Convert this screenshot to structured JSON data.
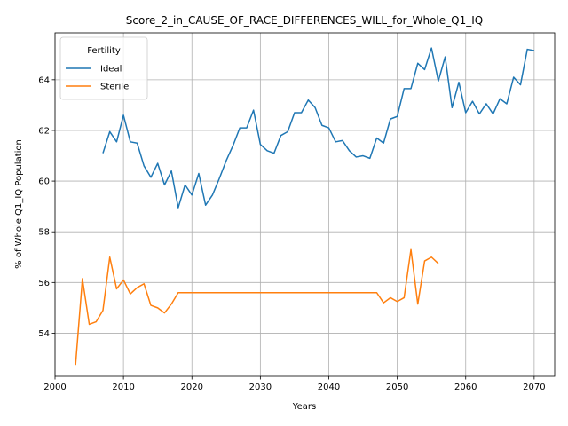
{
  "chart_data": {
    "type": "line",
    "title": "Score_2_in_CAUSE_OF_RACE_DIFFERENCES_WILL_for_Whole_Q1_IQ",
    "xlabel": "Years",
    "ylabel": "% of Whole Q1_IQ Population",
    "xlim": [
      2000,
      2073
    ],
    "ylim": [
      52.3,
      65.85
    ],
    "xticks": [
      2000,
      2010,
      2020,
      2030,
      2040,
      2050,
      2060,
      2070
    ],
    "yticks": [
      54,
      56,
      58,
      60,
      62,
      64
    ],
    "grid": true,
    "legend": {
      "title": "Fertility",
      "placement": "top-left"
    },
    "series": [
      {
        "name": "Ideal",
        "color": "#1f77b4",
        "x": [
          2007,
          2008,
          2009,
          2010,
          2011,
          2012,
          2013,
          2014,
          2015,
          2016,
          2017,
          2018,
          2019,
          2020,
          2021,
          2022,
          2023,
          2024,
          2025,
          2026,
          2027,
          2028,
          2029,
          2030,
          2031,
          2032,
          2033,
          2034,
          2035,
          2036,
          2037,
          2038,
          2039,
          2040,
          2041,
          2042,
          2043,
          2044,
          2045,
          2046,
          2047,
          2048,
          2049,
          2050,
          2051,
          2052,
          2053,
          2054,
          2055,
          2056,
          2057,
          2058,
          2059,
          2060,
          2061,
          2062,
          2063,
          2064,
          2065,
          2066,
          2067,
          2068,
          2069,
          2070
        ],
        "values": [
          61.1,
          61.95,
          61.55,
          62.6,
          61.55,
          61.5,
          60.6,
          60.15,
          60.7,
          59.85,
          60.4,
          58.95,
          59.85,
          59.45,
          60.3,
          59.05,
          59.45,
          60.1,
          60.8,
          61.4,
          62.1,
          62.1,
          62.8,
          61.45,
          61.2,
          61.1,
          61.8,
          61.95,
          62.7,
          62.7,
          63.2,
          62.9,
          62.2,
          62.1,
          61.55,
          61.6,
          61.2,
          60.95,
          61.0,
          60.9,
          61.7,
          61.5,
          62.45,
          62.55,
          63.65,
          63.65,
          64.65,
          64.4,
          65.25,
          63.95,
          64.9,
          62.9,
          63.9,
          62.7,
          63.15,
          62.65,
          63.05,
          62.65,
          63.25,
          63.05,
          64.1,
          63.8,
          65.2,
          65.15
        ]
      },
      {
        "name": "Sterile",
        "color": "#ff7f0e",
        "x": [
          2003,
          2004,
          2005,
          2006,
          2007,
          2008,
          2009,
          2010,
          2011,
          2012,
          2013,
          2014,
          2015,
          2016,
          2017,
          2018,
          2019,
          2020,
          2021,
          2022,
          2023,
          2024,
          2025,
          2026,
          2027,
          2028,
          2029,
          2030,
          2031,
          2032,
          2033,
          2034,
          2035,
          2036,
          2037,
          2038,
          2039,
          2040,
          2041,
          2042,
          2043,
          2044,
          2045,
          2046,
          2047,
          2048,
          2049,
          2050,
          2051,
          2052,
          2053,
          2054,
          2055,
          2056
        ],
        "values": [
          52.75,
          56.15,
          54.35,
          54.45,
          54.9,
          57.0,
          55.75,
          56.1,
          55.55,
          55.8,
          55.95,
          55.1,
          55.0,
          54.8,
          55.15,
          55.6,
          55.6,
          55.6,
          55.6,
          55.6,
          55.6,
          55.6,
          55.6,
          55.6,
          55.6,
          55.6,
          55.6,
          55.6,
          55.6,
          55.6,
          55.6,
          55.6,
          55.6,
          55.6,
          55.6,
          55.6,
          55.6,
          55.6,
          55.6,
          55.6,
          55.6,
          55.6,
          55.6,
          55.6,
          55.6,
          55.2,
          55.4,
          55.25,
          55.4,
          57.3,
          55.15,
          56.85,
          57.0,
          56.75
        ]
      }
    ]
  }
}
